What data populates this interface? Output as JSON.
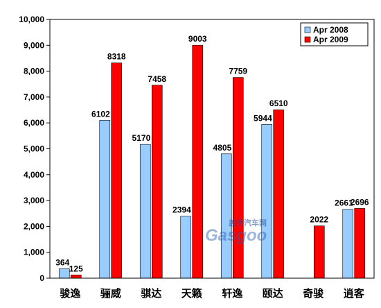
{
  "chart_data": {
    "type": "bar",
    "categories": [
      "骏逸",
      "骊威",
      "骐达",
      "天籁",
      "轩逸",
      "颐达",
      "奇骏",
      "逍客"
    ],
    "series": [
      {
        "name": "Apr 2008",
        "values": [
          364,
          6102,
          5170,
          2394,
          4805,
          5944,
          null,
          2661
        ],
        "labels": [
          "364",
          "6102",
          "5170",
          "2394",
          "4805",
          "5944",
          "",
          "2661"
        ],
        "color": "#99ccff"
      },
      {
        "name": "Apr  2009",
        "values": [
          125,
          8318,
          7458,
          9003,
          7759,
          6510,
          2022,
          2696
        ],
        "labels": [
          "125",
          "8318",
          "7458",
          "9003",
          "7759",
          "6510",
          "2022",
          "2696"
        ],
        "color": "#ff0000"
      }
    ],
    "ylim": [
      0,
      10000
    ],
    "yticks": [
      0,
      1000,
      2000,
      3000,
      4000,
      5000,
      6000,
      7000,
      8000,
      9000,
      10000
    ],
    "ytick_labels": [
      "0",
      "1,000",
      "2,000",
      "3,000",
      "4,000",
      "5,000",
      "6,000",
      "7,000",
      "8,000",
      "9,000",
      "10,000"
    ],
    "grid": false,
    "legend": "top-right",
    "title": "",
    "xlabel": "",
    "ylabel": ""
  },
  "watermark": {
    "line1": "盖世汽车网",
    "line2": "Gasgoo"
  }
}
